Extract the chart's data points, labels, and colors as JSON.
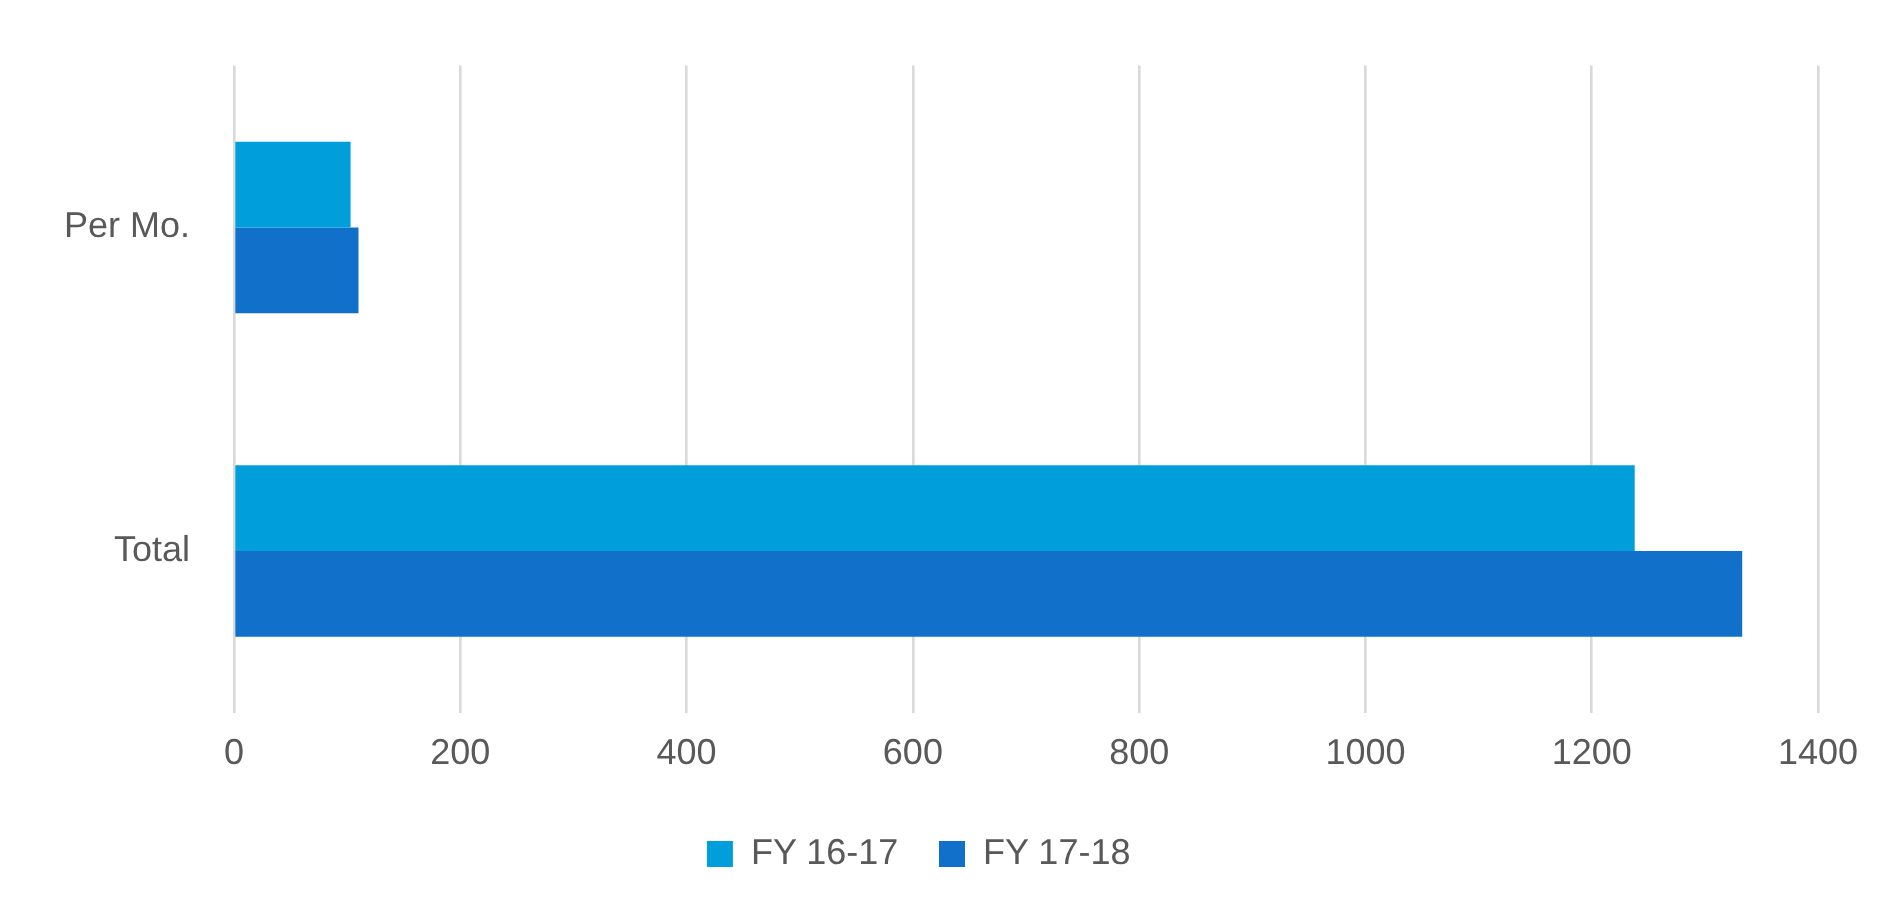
{
  "chart_data": {
    "type": "bar",
    "orientation": "horizontal",
    "categories": [
      "Per Mo.",
      "Total"
    ],
    "series": [
      {
        "name": "FY 16-17",
        "color": "#009fdb",
        "values": [
          103,
          1238
        ]
      },
      {
        "name": "FY 17-18",
        "color": "#1170c9",
        "values": [
          110,
          1333
        ]
      }
    ],
    "xlim": [
      0,
      1400
    ],
    "xticks": [
      0,
      200,
      400,
      600,
      800,
      1000,
      1200,
      1400
    ],
    "grid": "x",
    "legend": "bottom"
  }
}
